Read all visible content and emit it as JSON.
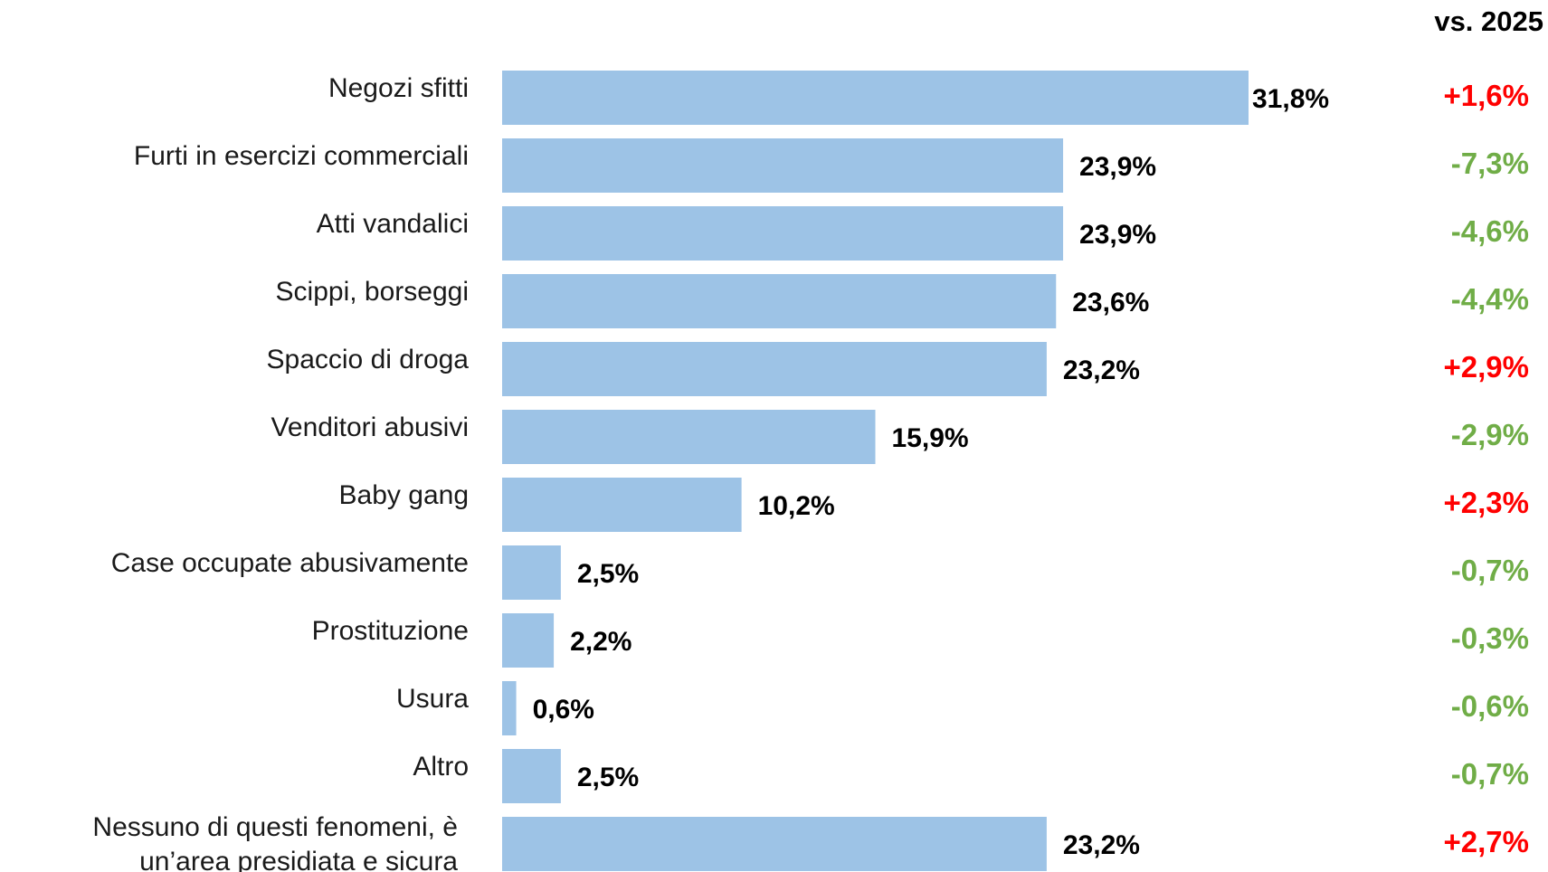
{
  "chart_data": {
    "type": "bar",
    "orientation": "horizontal",
    "categories": [
      [
        "Negozi sfitti"
      ],
      [
        "Furti in esercizi commerciali"
      ],
      [
        "Atti vandalici"
      ],
      [
        "Scippi, borseggi"
      ],
      [
        "Spaccio di droga"
      ],
      [
        "Venditori abusivi"
      ],
      [
        "Baby gang"
      ],
      [
        "Case occupate abusivamente"
      ],
      [
        "Prostituzione"
      ],
      [
        "Usura"
      ],
      [
        "Altro"
      ],
      [
        "Nessuno di questi fenomeni, è",
        "un’area presidiata e sicura"
      ]
    ],
    "values": [
      31.8,
      23.9,
      23.9,
      23.6,
      23.2,
      15.9,
      10.2,
      2.5,
      2.2,
      0.6,
      2.5,
      23.2
    ],
    "value_labels": [
      "31,8%",
      "23,9%",
      "23,9%",
      "23,6%",
      "23,2%",
      "15,9%",
      "10,2%",
      "2,5%",
      "2,2%",
      "0,6%",
      "2,5%",
      "23,2%"
    ],
    "change_header": "vs. 2025",
    "changes": [
      1.6,
      -7.3,
      -4.6,
      -4.4,
      2.9,
      -2.9,
      2.3,
      -0.7,
      -0.3,
      -0.6,
      -0.7,
      2.7
    ],
    "change_labels": [
      "+1,6%",
      "-7,3%",
      "-4,6%",
      "-4,4%",
      "+2,9%",
      "-2,9%",
      "+2,3%",
      "-0,7%",
      "-0,3%",
      "-0,6%",
      "-0,7%",
      "+2,7%"
    ],
    "xlim": [
      0,
      31.8
    ],
    "grid": false,
    "legend": "none",
    "colors": {
      "bar": "#9DC3E6",
      "increase": "#FF0000",
      "decrease": "#70AD47"
    }
  }
}
